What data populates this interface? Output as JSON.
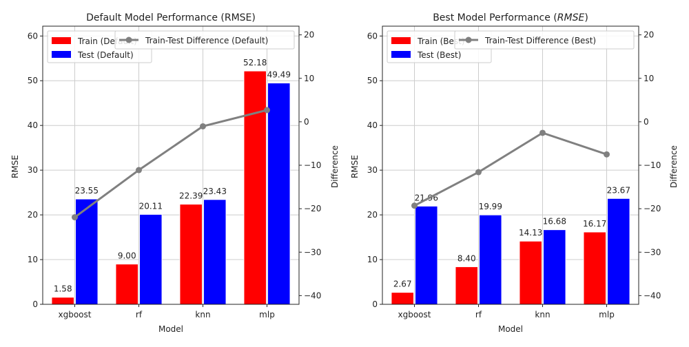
{
  "chart_data": [
    {
      "type": "bar",
      "title": "Default Model Performance (RMSE)",
      "xlabel": "Model",
      "ylabel": "RMSE",
      "y2label": "Difference",
      "categories": [
        "xgboost",
        "rf",
        "knn",
        "mlp"
      ],
      "ylim": [
        0,
        62.2
      ],
      "yticks": [
        0,
        10,
        20,
        30,
        40,
        50,
        60
      ],
      "y2lim": [
        -42,
        22
      ],
      "y2ticks": [
        -40,
        -30,
        -20,
        -10,
        0,
        10,
        20
      ],
      "grid": true,
      "series": [
        {
          "name": "Train (Default)",
          "color": "#ff0000",
          "values": [
            1.58,
            9.0,
            22.39,
            52.18
          ],
          "labels": [
            "1.58",
            "9.00",
            "22.39",
            "52.18"
          ]
        },
        {
          "name": "Test (Default)",
          "color": "#0000ff",
          "values": [
            23.55,
            20.11,
            23.43,
            49.49
          ],
          "labels": [
            "23.55",
            "20.11",
            "23.43",
            "49.49"
          ]
        }
      ],
      "line": {
        "name": "Train-Test Difference (Default)",
        "color": "#808080",
        "values": [
          -21.97,
          -11.11,
          -1.04,
          2.69
        ]
      },
      "legend": "top-left"
    },
    {
      "type": "bar",
      "title_parts": [
        "Best Model Performance (",
        "RMSE",
        ")"
      ],
      "xlabel": "Model",
      "ylabel": "RMSE",
      "y2label": "Difference",
      "categories": [
        "xgboost",
        "rf",
        "knn",
        "mlp"
      ],
      "ylim": [
        0,
        62.2
      ],
      "yticks": [
        0,
        10,
        20,
        30,
        40,
        50,
        60
      ],
      "y2lim": [
        -42,
        22
      ],
      "y2ticks": [
        -40,
        -30,
        -20,
        -10,
        0,
        10,
        20
      ],
      "grid": true,
      "series": [
        {
          "name": "Train (Best)",
          "color": "#ff0000",
          "values": [
            2.67,
            8.4,
            14.13,
            16.17
          ],
          "labels": [
            "2.67",
            "8.40",
            "14.13",
            "16.17"
          ]
        },
        {
          "name": "Test (Best)",
          "color": "#0000ff",
          "values": [
            21.96,
            19.99,
            16.68,
            23.67
          ],
          "labels": [
            "21.96",
            "19.99",
            "16.68",
            "23.67"
          ]
        }
      ],
      "line": {
        "name": "Train-Test Difference (Best)",
        "color": "#808080",
        "values": [
          -19.29,
          -11.59,
          -2.55,
          -7.5
        ]
      },
      "legend": "top-left"
    }
  ]
}
